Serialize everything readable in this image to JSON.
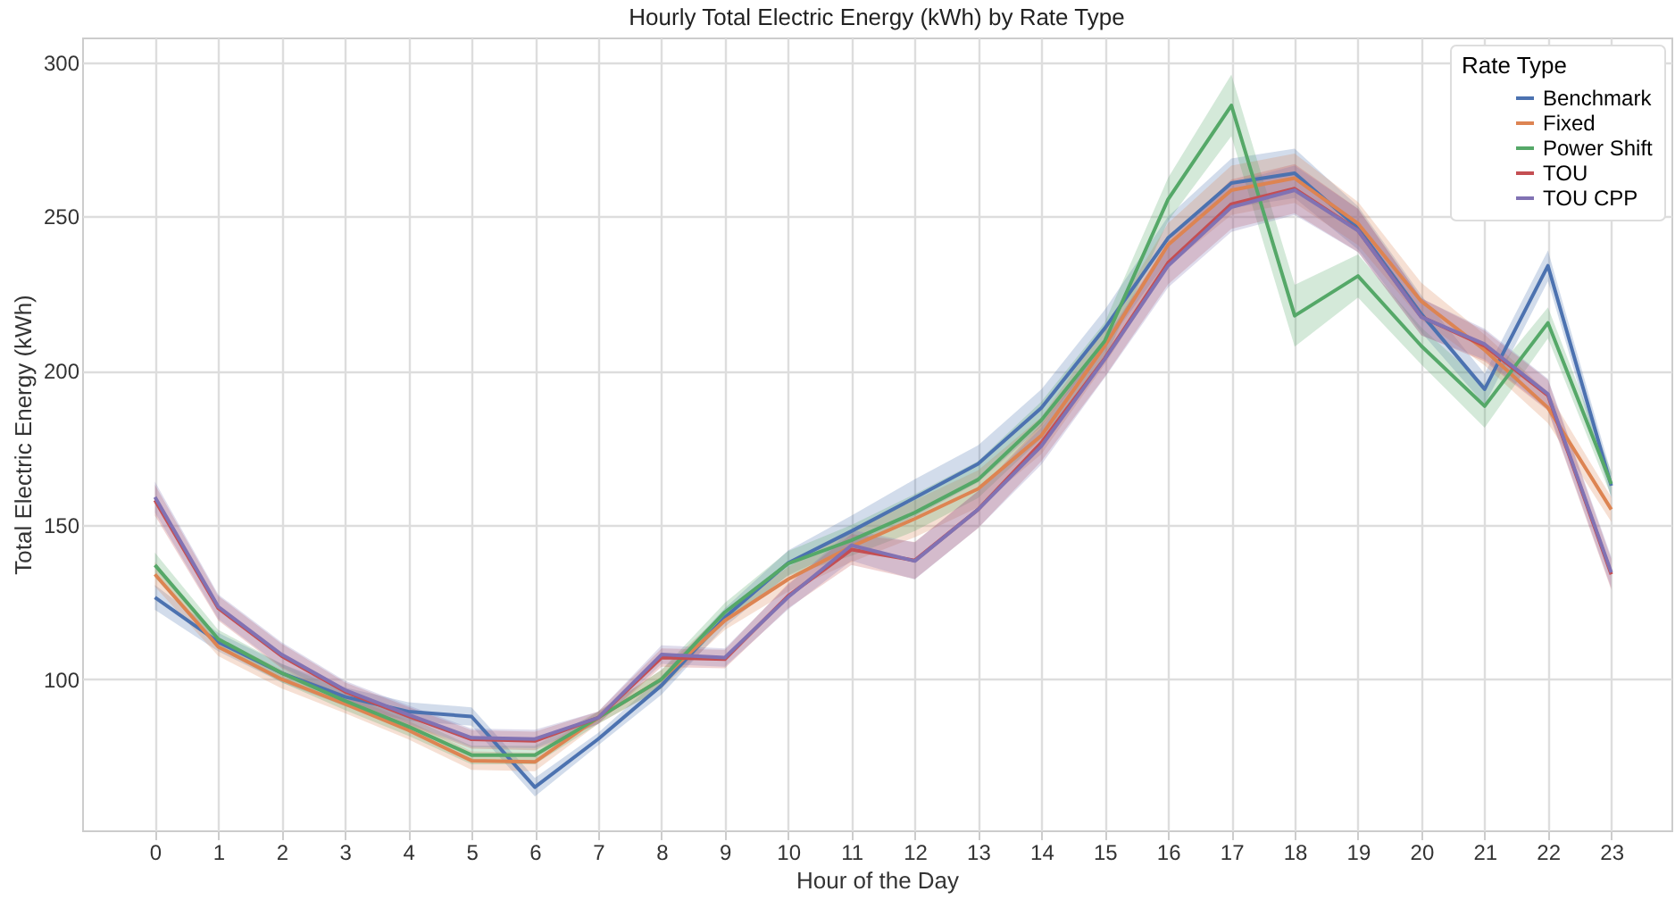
{
  "chart_data": {
    "type": "line",
    "title": "Hourly Total Electric Energy (kWh) by Rate Type",
    "xlabel": "Hour of the Day",
    "ylabel": "Total Electric Energy (kWh)",
    "legend_title": "Rate Type",
    "legend": "top right",
    "grid": true,
    "marker": "none",
    "x": [
      0,
      1,
      2,
      3,
      4,
      5,
      6,
      7,
      8,
      9,
      10,
      11,
      12,
      13,
      14,
      15,
      16,
      17,
      18,
      19,
      20,
      21,
      22,
      23
    ],
    "xlim": [
      -1.15,
      23.95
    ],
    "xticks": [
      0,
      1,
      2,
      3,
      4,
      5,
      6,
      7,
      8,
      9,
      10,
      11,
      12,
      13,
      14,
      15,
      16,
      17,
      18,
      19,
      20,
      21,
      22,
      23
    ],
    "ylim": [
      51,
      308
    ],
    "yticks": [
      100,
      150,
      200,
      250,
      300
    ],
    "series": [
      {
        "name": "Benchmark",
        "color": "#4c72b0",
        "values": [
          126.5,
          112,
          102,
          94.3,
          89.5,
          87.9,
          65,
          80.6,
          98,
          120,
          137.7,
          148,
          158.8,
          169.8,
          188,
          213.7,
          243,
          260.8,
          264,
          246.3,
          218.4,
          194,
          234,
          162.7
        ],
        "lower": [
          122.5,
          109,
          99,
          91.3,
          86.5,
          84.9,
          62,
          78.6,
          95,
          117,
          133.7,
          143,
          152.8,
          163.8,
          182,
          207.7,
          236,
          252.8,
          256,
          239.3,
          212.4,
          189,
          229,
          158.7
        ],
        "upper": [
          130.5,
          115,
          105,
          97.3,
          92.5,
          90.9,
          68,
          82.6,
          101,
          123,
          141.7,
          153,
          164.8,
          175.8,
          194,
          219.7,
          250,
          268.8,
          272,
          253.3,
          224.4,
          199,
          239,
          166.7
        ]
      },
      {
        "name": "Fixed",
        "color": "#dd8452",
        "values": [
          134,
          110.5,
          100,
          92,
          83.5,
          73.6,
          73.2,
          87.5,
          100,
          119,
          132.4,
          143,
          152,
          161.7,
          179,
          208,
          240.8,
          258.5,
          262.4,
          247.7,
          222.5,
          206.7,
          188,
          155
        ],
        "lower": [
          130,
          107.5,
          97,
          89,
          80.5,
          70.6,
          70.2,
          85.5,
          97,
          116,
          128.4,
          138,
          146,
          155.7,
          173,
          202,
          233.8,
          250.5,
          254.4,
          240.7,
          216.5,
          201.7,
          183,
          151
        ],
        "upper": [
          138,
          113.5,
          103,
          95,
          86.5,
          76.6,
          76.2,
          89.5,
          103,
          122,
          136.4,
          148,
          158,
          167.7,
          185,
          214,
          247.8,
          266.5,
          270.4,
          254.7,
          228.5,
          211.7,
          193,
          159
        ]
      },
      {
        "name": "Power Shift",
        "color": "#55a868",
        "values": [
          137,
          113,
          102,
          93,
          84.7,
          75.4,
          75.4,
          87.5,
          100,
          121.7,
          137.5,
          145,
          154,
          164.7,
          184,
          209.6,
          255.5,
          286,
          217.8,
          230.7,
          208,
          188.5,
          215.5,
          163.3
        ],
        "lower": [
          133,
          110,
          99,
          90,
          81.7,
          72.4,
          72.4,
          85.5,
          97,
          118.7,
          133.5,
          140,
          148,
          158.7,
          178,
          203.6,
          248.5,
          276,
          207.8,
          223.7,
          202,
          181.5,
          210.5,
          159.3
        ],
        "upper": [
          141,
          116,
          105,
          96,
          87.7,
          78.4,
          78.4,
          89.5,
          103,
          124.7,
          141.5,
          150,
          160,
          170.7,
          190,
          215.6,
          262.5,
          296,
          227.8,
          237.7,
          214,
          195.5,
          220.5,
          167.3
        ]
      },
      {
        "name": "TOU",
        "color": "#c44e52",
        "values": [
          158,
          123,
          107.5,
          96,
          88,
          80.5,
          80,
          87.5,
          107,
          106.5,
          127,
          142,
          138.5,
          155,
          176.7,
          204,
          235,
          254,
          259,
          245.5,
          217.5,
          208,
          192,
          134
        ],
        "lower": [
          153,
          119,
          103.5,
          93,
          85,
          77.5,
          77,
          85.5,
          104,
          103.5,
          123,
          137,
          132.5,
          149,
          170.7,
          198,
          228,
          246,
          251,
          238.5,
          211.5,
          203,
          187,
          129
        ],
        "upper": [
          163,
          127,
          111.5,
          99,
          91,
          83.5,
          83,
          89.5,
          110,
          109.5,
          131,
          147,
          144.5,
          161,
          182.7,
          210,
          242,
          262,
          267,
          252.5,
          223.5,
          213,
          197,
          139
        ]
      },
      {
        "name": "TOU CPP",
        "color": "#8172b3",
        "values": [
          159,
          123.5,
          108,
          96.5,
          88.5,
          81,
          80.6,
          87.5,
          108,
          107,
          126.6,
          143.4,
          138.3,
          155,
          175.6,
          203.7,
          234,
          253,
          258.5,
          245.4,
          217.4,
          208.6,
          192.4,
          134.6
        ],
        "lower": [
          154,
          119.5,
          104,
          93.5,
          85.5,
          78,
          77.6,
          85.5,
          105,
          104,
          122.6,
          138.4,
          132.3,
          149,
          169.6,
          197.7,
          227,
          245,
          250.5,
          238.4,
          211.4,
          203.6,
          187.4,
          129.6
        ],
        "upper": [
          164,
          127.5,
          112,
          99.5,
          91.5,
          84,
          83.6,
          89.5,
          111,
          110,
          130.6,
          148.4,
          144.3,
          161,
          181.6,
          209.7,
          241,
          261,
          266.5,
          252.4,
          223.4,
          213.6,
          197.4,
          139.6
        ]
      }
    ]
  }
}
